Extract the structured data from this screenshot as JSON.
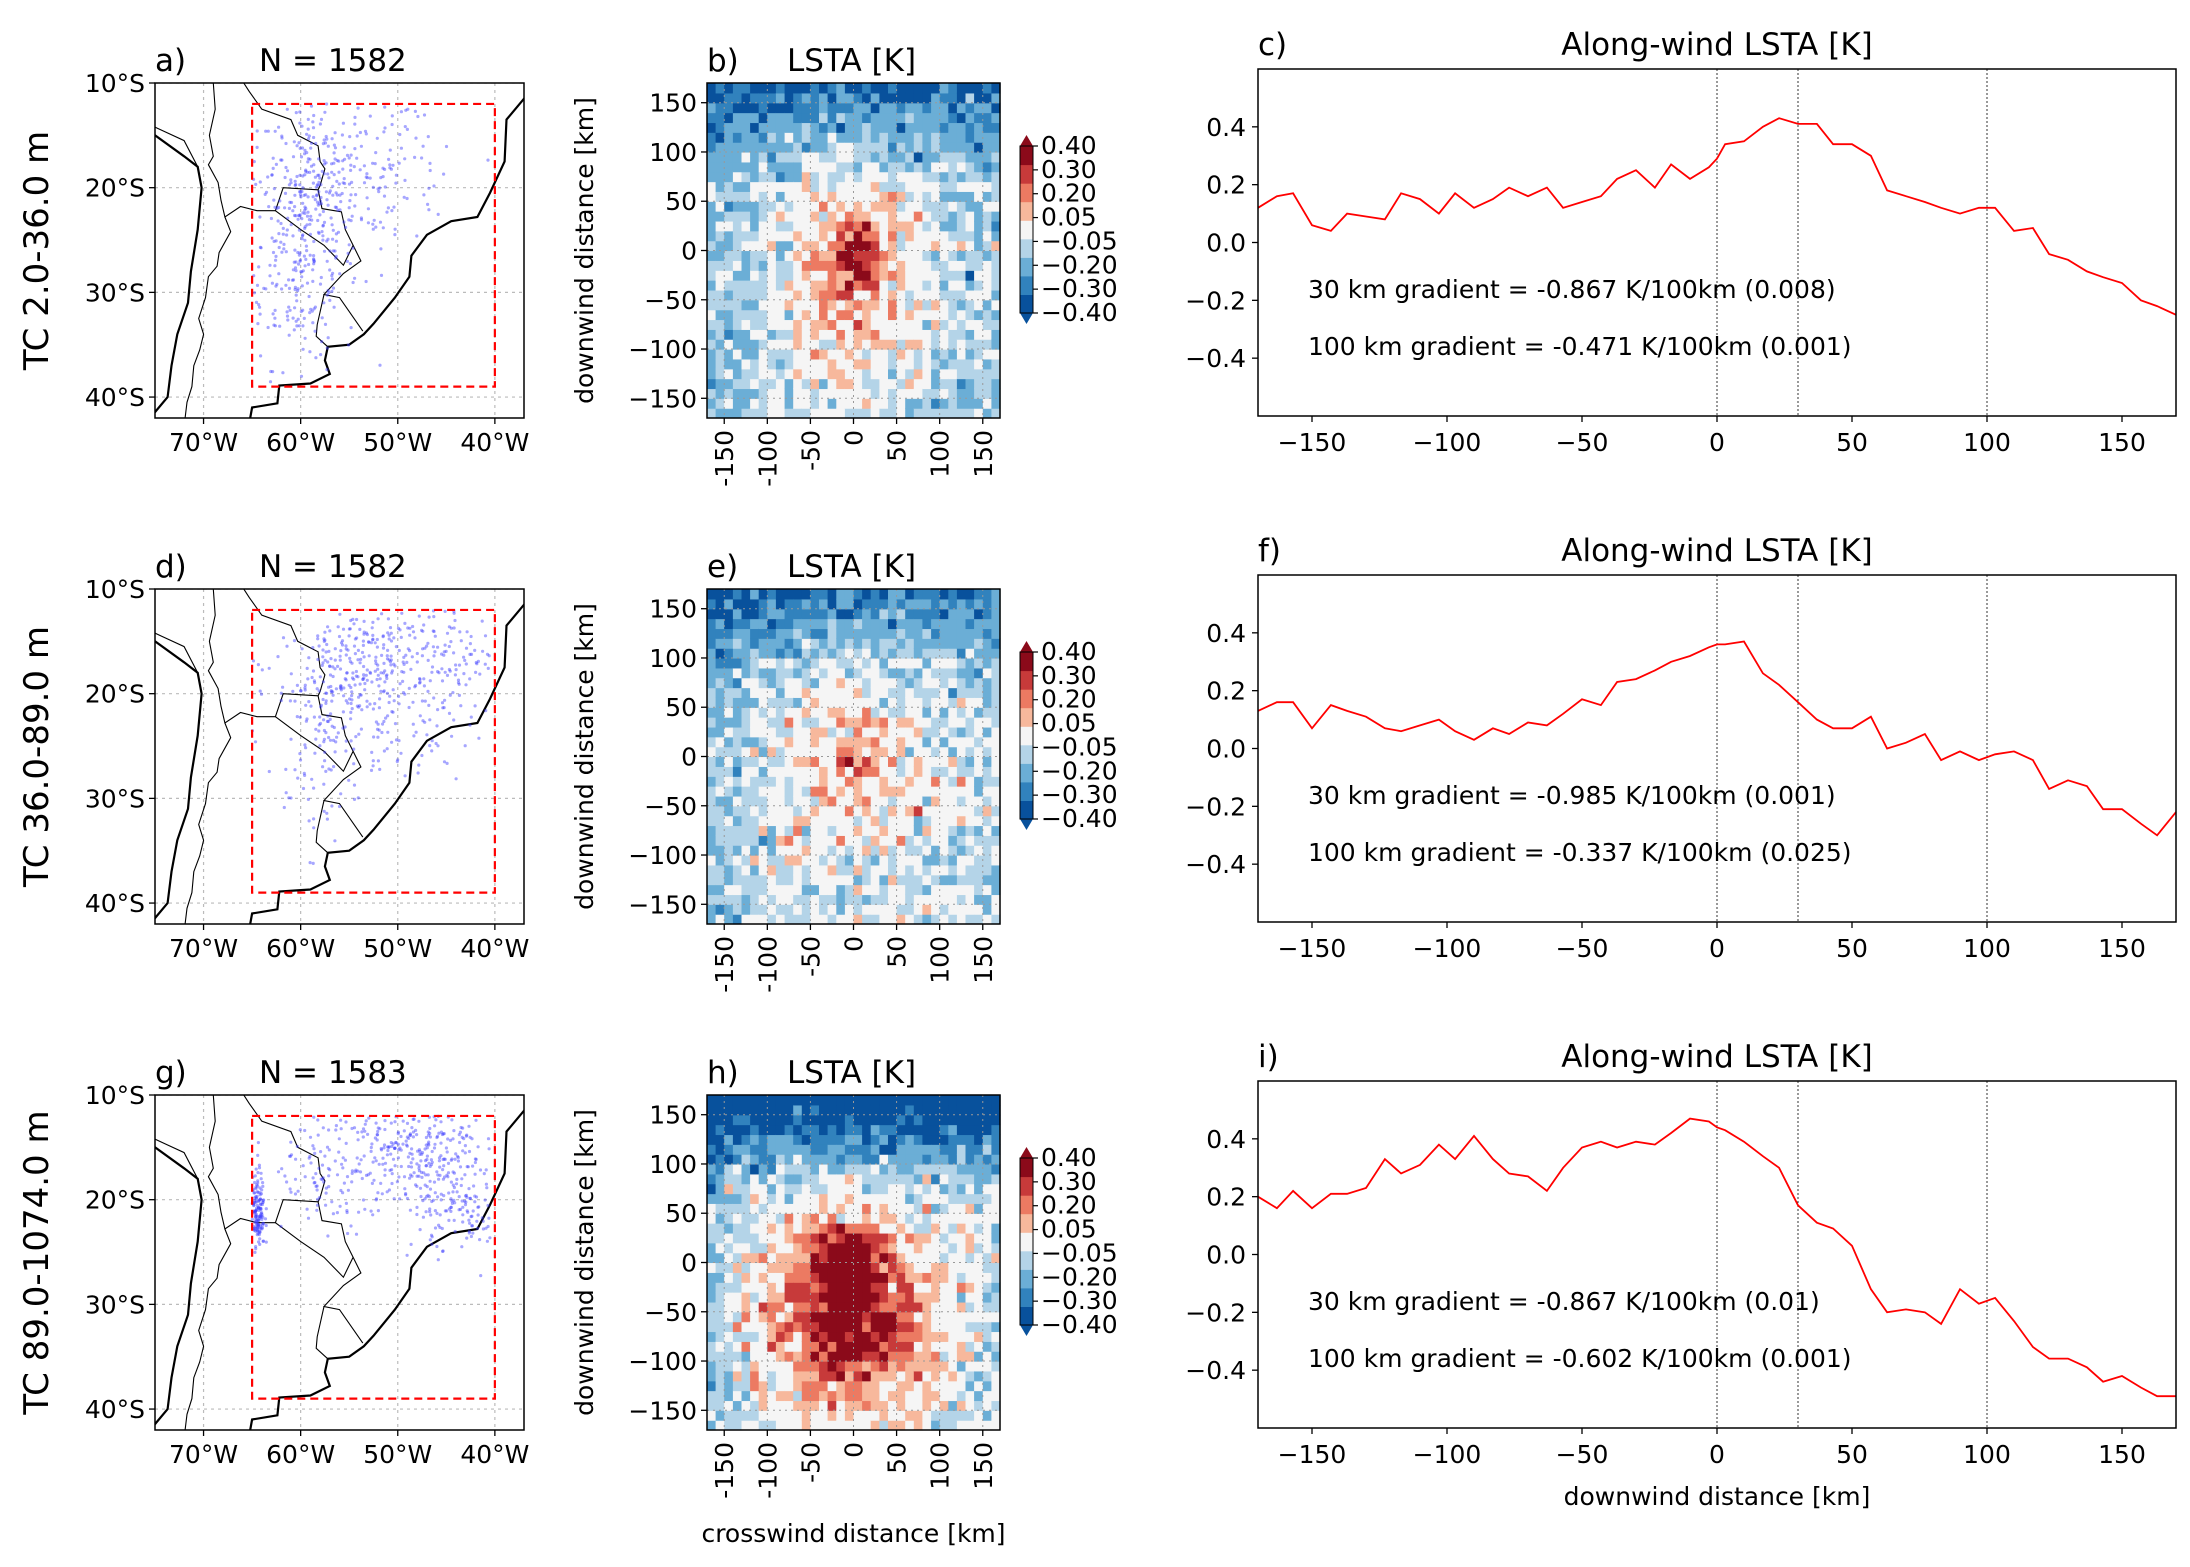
{
  "colors": {
    "point": "#3b3bff",
    "box": "#ff0000",
    "line": "#ff0000",
    "cmap": [
      "#08519c",
      "#3182bd",
      "#6baed6",
      "#b4d4e8",
      "#f5f5f5",
      "#f7b89c",
      "#ec7a62",
      "#c73a3a",
      "#8b0a1a"
    ]
  },
  "colorbar": {
    "levels": [
      "0.40",
      "0.30",
      "0.20",
      "0.05",
      "−0.05",
      "−0.20",
      "−0.30",
      "−0.40"
    ]
  },
  "map": {
    "xticks": [
      "70°W",
      "60°W",
      "50°W",
      "40°W"
    ],
    "yticks": [
      "10°S",
      "20°S",
      "30°S",
      "40°S"
    ],
    "lon_range": [
      -75,
      -37
    ],
    "lat_range": [
      -42,
      -10
    ],
    "box": {
      "lon": [
        -65,
        -40
      ],
      "lat": [
        -39,
        -12
      ]
    }
  },
  "contour": {
    "title": "LSTA [K]",
    "ylabel": "downwind distance [km]",
    "xlabel": "crosswind distance [km]",
    "xticks": [
      "-150",
      "-100",
      "-50",
      "0",
      "50",
      "100",
      "150"
    ],
    "yticks": [
      "150",
      "100",
      "50",
      "0",
      "−50",
      "−100",
      "−150"
    ],
    "range": [
      -170,
      170
    ]
  },
  "profile": {
    "title": "Along-wind LSTA [K]",
    "xlabel": "downwind distance [km]",
    "xticks": [
      "−150",
      "−100",
      "−50",
      "0",
      "50",
      "100",
      "150"
    ],
    "yticks": [
      "0.4",
      "0.2",
      "0.0",
      "−0.2",
      "−0.4"
    ],
    "xlim": [
      -170,
      170
    ],
    "ylim": [
      -0.6,
      0.6
    ],
    "vlines": [
      0,
      30,
      100
    ]
  },
  "rows": [
    {
      "ylabel": "TC  2.0-36.0 m",
      "labels": [
        "a)",
        "b)",
        "c)"
      ],
      "N": "N = 1582",
      "grad30": "30 km gradient = -0.867 K/100km (0.008)",
      "grad100": "100 km gradient = -0.471 K/100km (0.001)",
      "field": {
        "amp": 0.28,
        "cx": 0,
        "cy": -30,
        "sx": 70,
        "sy": 90,
        "bias": -0.03,
        "top": -0.3,
        "peak": 0.32
      },
      "points": {
        "clusters": [
          [
            -58,
            -17,
            6,
            3,
            120
          ],
          [
            -60,
            -27,
            3,
            5,
            260
          ],
          [
            -58,
            -20,
            2,
            2,
            80
          ],
          [
            -52,
            -21,
            4,
            2,
            60
          ],
          [
            -55,
            -14,
            6,
            2,
            40
          ]
        ]
      },
      "chart_data": {
        "type": "line",
        "x": [
          -170,
          -163,
          -157,
          -150,
          -143,
          -137,
          -130,
          -123,
          -117,
          -110,
          -103,
          -97,
          -90,
          -83,
          -77,
          -70,
          -63,
          -57,
          -50,
          -43,
          -37,
          -30,
          -23,
          -17,
          -10,
          -3,
          0,
          3,
          10,
          17,
          23,
          30,
          37,
          43,
          50,
          57,
          63,
          70,
          77,
          83,
          90,
          97,
          103,
          110,
          117,
          123,
          130,
          137,
          143,
          150,
          157,
          163,
          170
        ],
        "y": [
          0.12,
          0.16,
          0.17,
          0.06,
          0.04,
          0.1,
          0.09,
          0.08,
          0.17,
          0.15,
          0.1,
          0.17,
          0.12,
          0.15,
          0.19,
          0.16,
          0.19,
          0.12,
          0.14,
          0.16,
          0.22,
          0.25,
          0.19,
          0.27,
          0.22,
          0.26,
          0.29,
          0.34,
          0.35,
          0.4,
          0.43,
          0.41,
          0.41,
          0.34,
          0.34,
          0.3,
          0.18,
          0.16,
          0.14,
          0.12,
          0.1,
          0.12,
          0.12,
          0.04,
          0.05,
          -0.04,
          -0.06,
          -0.1,
          -0.12,
          -0.14,
          -0.2,
          -0.22,
          -0.25
        ]
      }
    },
    {
      "ylabel": "TC  36.0-89.0 m",
      "labels": [
        "d)",
        "e)",
        "f)"
      ],
      "N": "N = 1582",
      "grad30": "30 km gradient = -0.985 K/100km (0.001)",
      "grad100": "100 km gradient = -0.337 K/100km (0.025)",
      "field": {
        "amp": 0.17,
        "cx": 0,
        "cy": -20,
        "sx": 80,
        "sy": 95,
        "bias": 0.0,
        "top": -0.32,
        "peak": 0.2
      },
      "points": {
        "clusters": [
          [
            -52,
            -17,
            5,
            3,
            260
          ],
          [
            -57,
            -20,
            3,
            3,
            120
          ],
          [
            -50,
            -24,
            4,
            3,
            80
          ],
          [
            -45,
            -16,
            3,
            3,
            60
          ],
          [
            -58,
            -29,
            2,
            3,
            40
          ]
        ]
      },
      "chart_data": {
        "type": "line",
        "x": [
          -170,
          -163,
          -157,
          -150,
          -143,
          -137,
          -130,
          -123,
          -117,
          -110,
          -103,
          -97,
          -90,
          -83,
          -77,
          -70,
          -63,
          -57,
          -50,
          -43,
          -37,
          -30,
          -23,
          -17,
          -10,
          -3,
          0,
          3,
          10,
          17,
          23,
          30,
          37,
          43,
          50,
          57,
          63,
          70,
          77,
          83,
          90,
          97,
          103,
          110,
          117,
          123,
          130,
          137,
          143,
          150,
          157,
          163,
          170
        ],
        "y": [
          0.13,
          0.16,
          0.16,
          0.07,
          0.15,
          0.13,
          0.11,
          0.07,
          0.06,
          0.08,
          0.1,
          0.06,
          0.03,
          0.07,
          0.05,
          0.09,
          0.08,
          0.12,
          0.17,
          0.15,
          0.23,
          0.24,
          0.27,
          0.3,
          0.32,
          0.35,
          0.36,
          0.36,
          0.37,
          0.26,
          0.22,
          0.16,
          0.1,
          0.07,
          0.07,
          0.11,
          0.0,
          0.02,
          0.05,
          -0.04,
          -0.01,
          -0.04,
          -0.02,
          -0.01,
          -0.04,
          -0.14,
          -0.11,
          -0.13,
          -0.21,
          -0.21,
          -0.26,
          -0.3,
          -0.22
        ]
      }
    },
    {
      "ylabel": "TC  89.0-1074.0 m",
      "labels": [
        "g)",
        "h)",
        "i)"
      ],
      "N": "N = 1583",
      "grad30": "30 km gradient = -0.867 K/100km (0.01)",
      "grad100": "100 km gradient = -0.602 K/100km (0.001)",
      "field": {
        "amp": 0.55,
        "cx": -5,
        "cy": -50,
        "sx": 70,
        "sy": 70,
        "bias": 0.02,
        "top": -0.55,
        "peak": 0.35
      },
      "points": {
        "clusters": [
          [
            -64.5,
            -21,
            0.4,
            1.8,
            170
          ],
          [
            -47,
            -15,
            3,
            2,
            170
          ],
          [
            -43,
            -21,
            2.5,
            2,
            120
          ],
          [
            -53,
            -14,
            4,
            2,
            90
          ],
          [
            -57,
            -19,
            3,
            2,
            60
          ],
          [
            -50,
            -19,
            5,
            3,
            90
          ]
        ]
      },
      "chart_data": {
        "type": "line",
        "x": [
          -170,
          -163,
          -157,
          -150,
          -143,
          -137,
          -130,
          -123,
          -117,
          -110,
          -103,
          -97,
          -90,
          -83,
          -77,
          -70,
          -63,
          -57,
          -50,
          -43,
          -37,
          -30,
          -23,
          -17,
          -10,
          -3,
          0,
          3,
          10,
          17,
          23,
          30,
          37,
          43,
          50,
          57,
          63,
          70,
          77,
          83,
          90,
          97,
          103,
          110,
          117,
          123,
          130,
          137,
          143,
          150,
          157,
          163,
          170
        ],
        "y": [
          0.2,
          0.16,
          0.22,
          0.16,
          0.21,
          0.21,
          0.23,
          0.33,
          0.28,
          0.31,
          0.38,
          0.33,
          0.41,
          0.33,
          0.28,
          0.27,
          0.22,
          0.3,
          0.37,
          0.39,
          0.37,
          0.39,
          0.38,
          0.42,
          0.47,
          0.46,
          0.44,
          0.43,
          0.39,
          0.34,
          0.3,
          0.17,
          0.11,
          0.09,
          0.03,
          -0.12,
          -0.2,
          -0.19,
          -0.2,
          -0.24,
          -0.12,
          -0.17,
          -0.15,
          -0.23,
          -0.32,
          -0.36,
          -0.36,
          -0.39,
          -0.44,
          -0.42,
          -0.46,
          -0.49,
          -0.49
        ]
      }
    }
  ]
}
